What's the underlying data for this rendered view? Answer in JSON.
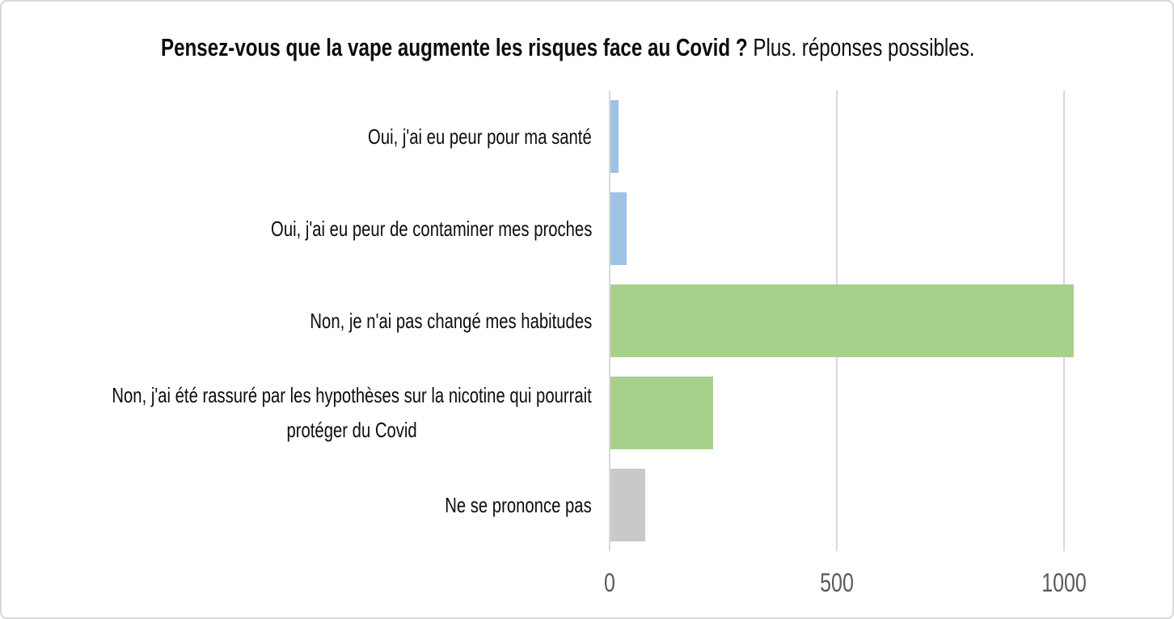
{
  "title": {
    "question": "Pensez-vous que la vape augmente les risques face au Covid ?",
    "note": "Plus. réponses possibles."
  },
  "colors": {
    "bar_blue": "#9EC3E4",
    "bar_green": "#A8D08D",
    "bar_gray": "#C9C9C9",
    "gridline": "#D9D9D9",
    "axis_line": "#D9D9D9",
    "tick_text": "#5B5B5B",
    "label_text": "#0D0D0D",
    "canvas_border": "#D9D9D9",
    "background": "#FFFFFF"
  },
  "chart_data": {
    "type": "bar",
    "orientation": "horizontal",
    "title": "Pensez-vous que la vape augmente les risques face au Covid ? Plus. réponses possibles.",
    "categories": [
      "Oui, j'ai eu peur pour ma santé",
      "Oui, j'ai eu peur de contaminer mes proches",
      "Non, je n'ai pas changé mes habitudes",
      "Non, j'ai été rassuré par les hypothèses sur la nicotine qui pourrait protéger du Covid",
      "Ne se prononce pas"
    ],
    "category_lines": [
      [
        "Oui, j'ai eu peur pour ma santé"
      ],
      [
        "Oui, j'ai eu peur de contaminer mes proches"
      ],
      [
        "Non, je n'ai pas changé mes habitudes"
      ],
      [
        "Non, j'ai été rassuré par les hypothèses sur la nicotine qui pourrait",
        "protéger du Covid"
      ],
      [
        "Ne se prononce pas"
      ]
    ],
    "values": [
      18,
      36,
      1020,
      225,
      77
    ],
    "bar_colors": [
      "#9EC3E4",
      "#9EC3E4",
      "#A8D08D",
      "#A8D08D",
      "#C9C9C9"
    ],
    "x_ticks": [
      0,
      500,
      1000
    ],
    "x_tick_labels": [
      "0",
      "500",
      "1000"
    ],
    "xlim": [
      0,
      1100
    ],
    "ylabel": "",
    "xlabel": "",
    "grid": "vertical",
    "legend": false
  }
}
